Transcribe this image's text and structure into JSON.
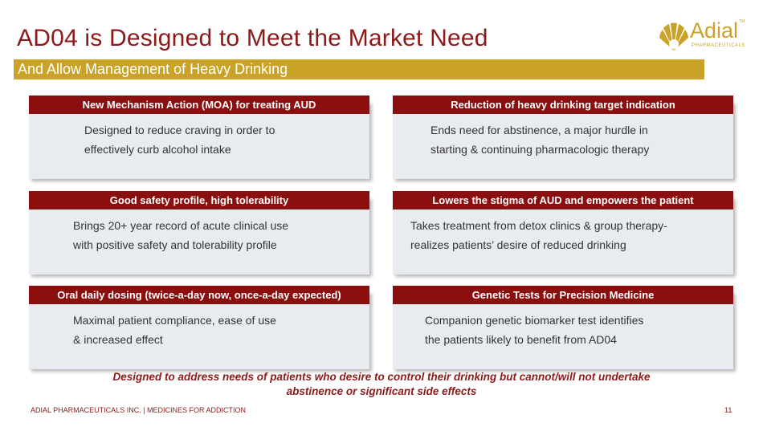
{
  "slide": {
    "title": "AD04 is Designed to Meet the Market Need",
    "subtitle": "And Allow Management of Heavy Drinking"
  },
  "logo": {
    "word": "Adial",
    "tm": "TM",
    "sub": "PHARMACEUTICALS",
    "color": "#c9a227"
  },
  "cards": [
    {
      "heading": "New Mechanism Action (MOA) for treating AUD",
      "lines": [
        "Designed to reduce craving in order to",
        "effectively curb alcohol intake"
      ]
    },
    {
      "heading": "Reduction of heavy drinking target indication",
      "lines": [
        "Ends need for abstinence, a major hurdle in",
        "starting & continuing pharmacologic therapy"
      ]
    },
    {
      "heading": "Good safety profile, high tolerability",
      "lines": [
        "Brings 20+ year record of acute clinical use",
        "with positive safety and tolerability profile"
      ]
    },
    {
      "heading": "Lowers the stigma of AUD and empowers the patient",
      "lines": [
        "Takes treatment from detox clinics & group therapy-",
        "realizes patients’ desire of reduced drinking"
      ]
    },
    {
      "heading": "Oral daily dosing (twice-a-day now, once-a-day expected)",
      "lines": [
        "Maximal patient compliance, ease of use",
        "& increased effect"
      ]
    },
    {
      "heading": "Genetic Tests for Precision Medicine",
      "lines": [
        "Companion genetic biomarker test identifies",
        "the patients likely to benefit from AD04"
      ]
    }
  ],
  "footnote": {
    "line1": "Designed to address needs of patients who desire to control their drinking but cannot/will not undertake",
    "line2": "abstinence or significant side effects"
  },
  "footer": {
    "text": "ADIAL PHARMACEUTICALS INC.  |  MEDICINES FOR ADDICTION",
    "page": "11"
  },
  "colors": {
    "accent_red": "#8b0f0f",
    "gold": "#c9a227",
    "card_bg": "#e8ebf0"
  }
}
